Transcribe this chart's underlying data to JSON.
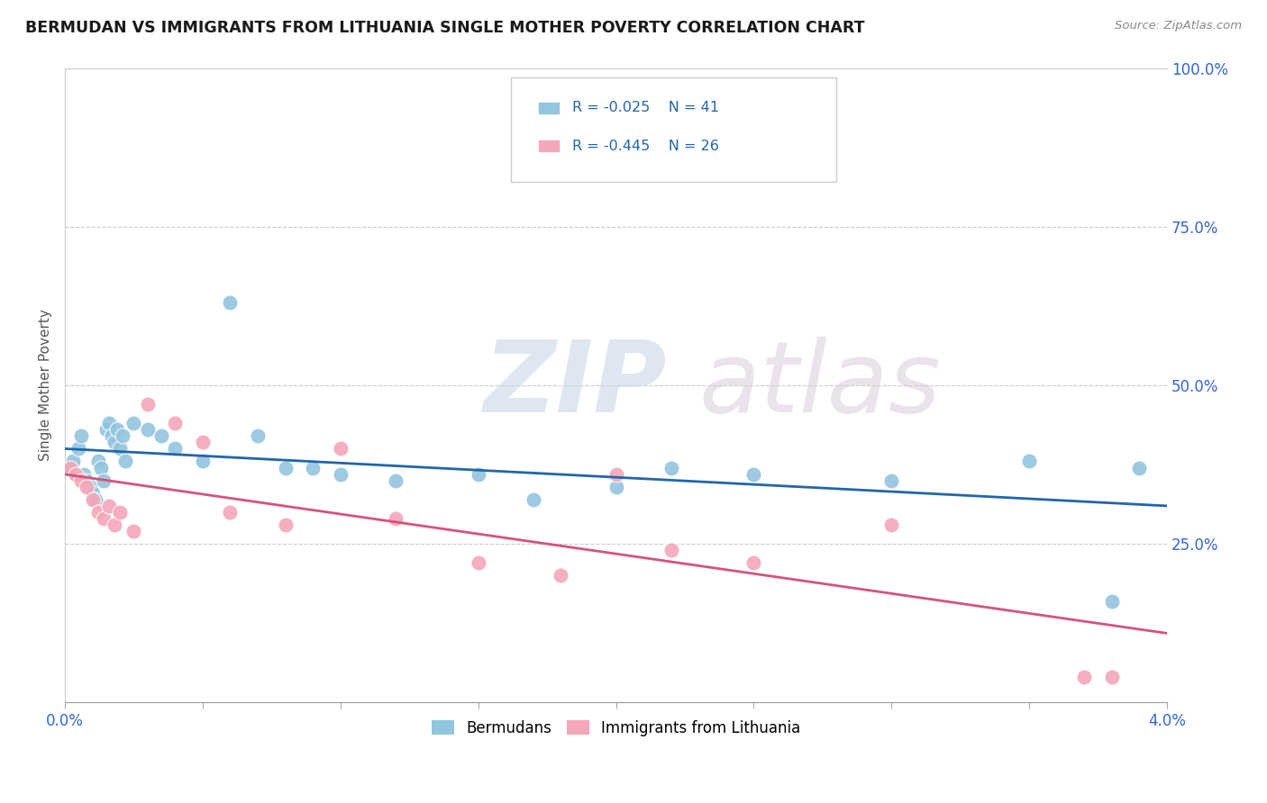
{
  "title": "BERMUDAN VS IMMIGRANTS FROM LITHUANIA SINGLE MOTHER POVERTY CORRELATION CHART",
  "source": "Source: ZipAtlas.com",
  "ylabel": "Single Mother Poverty",
  "xlim": [
    0.0,
    0.04
  ],
  "ylim": [
    0.0,
    1.0
  ],
  "ytick_labels_right": [
    "100.0%",
    "75.0%",
    "50.0%",
    "25.0%"
  ],
  "ytick_vals_right": [
    1.0,
    0.75,
    0.5,
    0.25
  ],
  "legend_r1": "R = -0.025",
  "legend_n1": "N = 41",
  "legend_r2": "R = -0.445",
  "legend_n2": "N = 26",
  "legend_label1": "Bermudans",
  "legend_label2": "Immigrants from Lithuania",
  "color_blue": "#92c5de",
  "color_pink": "#f4a7b9",
  "color_line_blue": "#2166ac",
  "color_line_pink": "#d6537a",
  "watermark_zip": "ZIP",
  "watermark_atlas": "atlas",
  "blue_x": [
    0.0002,
    0.0003,
    0.0004,
    0.0005,
    0.0006,
    0.0007,
    0.0008,
    0.0009,
    0.001,
    0.0011,
    0.0012,
    0.0013,
    0.0014,
    0.0015,
    0.0016,
    0.0017,
    0.0018,
    0.0019,
    0.002,
    0.0021,
    0.0022,
    0.0025,
    0.003,
    0.0035,
    0.004,
    0.005,
    0.006,
    0.007,
    0.008,
    0.009,
    0.01,
    0.012,
    0.015,
    0.017,
    0.02,
    0.022,
    0.025,
    0.03,
    0.035,
    0.038,
    0.039
  ],
  "blue_y": [
    0.37,
    0.38,
    0.36,
    0.4,
    0.42,
    0.36,
    0.35,
    0.34,
    0.33,
    0.32,
    0.38,
    0.37,
    0.35,
    0.43,
    0.44,
    0.42,
    0.41,
    0.43,
    0.4,
    0.42,
    0.38,
    0.44,
    0.43,
    0.42,
    0.4,
    0.38,
    0.63,
    0.42,
    0.37,
    0.37,
    0.36,
    0.35,
    0.36,
    0.32,
    0.34,
    0.37,
    0.36,
    0.35,
    0.38,
    0.16,
    0.37
  ],
  "pink_x": [
    0.0002,
    0.0004,
    0.0006,
    0.0008,
    0.001,
    0.0012,
    0.0014,
    0.0016,
    0.0018,
    0.002,
    0.0025,
    0.003,
    0.004,
    0.005,
    0.006,
    0.008,
    0.01,
    0.012,
    0.015,
    0.018,
    0.02,
    0.022,
    0.025,
    0.03,
    0.037,
    0.038
  ],
  "pink_y": [
    0.37,
    0.36,
    0.35,
    0.34,
    0.32,
    0.3,
    0.29,
    0.31,
    0.28,
    0.3,
    0.27,
    0.47,
    0.44,
    0.41,
    0.3,
    0.28,
    0.4,
    0.29,
    0.22,
    0.2,
    0.36,
    0.24,
    0.22,
    0.28,
    0.04,
    0.04
  ]
}
